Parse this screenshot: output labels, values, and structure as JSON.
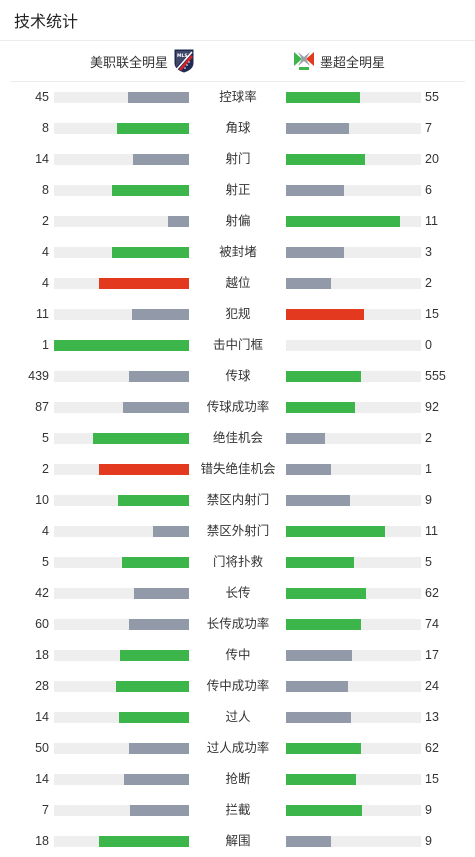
{
  "header": {
    "title": "技术统计"
  },
  "teams": {
    "home": {
      "name": "美职联全明星",
      "logo": "mls-crest-icon"
    },
    "away": {
      "name": "墨超全明星",
      "logo": "liga-mx-crest-icon"
    }
  },
  "colors": {
    "win": "#3cb54a",
    "lose": "#9299a8",
    "card": "#e2391f",
    "track": "#eeeeee"
  },
  "stats": [
    {
      "label": "控球率",
      "home": "45",
      "away": "55",
      "home_color": "gray",
      "away_color": "green",
      "home_fill": 0.45,
      "away_fill": 0.55
    },
    {
      "label": "角球",
      "home": "8",
      "away": "7",
      "home_color": "green",
      "away_color": "gray",
      "home_fill": 0.533,
      "away_fill": 0.467
    },
    {
      "label": "射门",
      "home": "14",
      "away": "20",
      "home_color": "gray",
      "away_color": "green",
      "home_fill": 0.412,
      "away_fill": 0.588
    },
    {
      "label": "射正",
      "home": "8",
      "away": "6",
      "home_color": "green",
      "away_color": "gray",
      "home_fill": 0.571,
      "away_fill": 0.429
    },
    {
      "label": "射偏",
      "home": "2",
      "away": "11",
      "home_color": "gray",
      "away_color": "green",
      "home_fill": 0.154,
      "away_fill": 0.846
    },
    {
      "label": "被封堵",
      "home": "4",
      "away": "3",
      "home_color": "green",
      "away_color": "gray",
      "home_fill": 0.571,
      "away_fill": 0.429
    },
    {
      "label": "越位",
      "home": "4",
      "away": "2",
      "home_color": "red",
      "away_color": "gray",
      "home_fill": 0.667,
      "away_fill": 0.333
    },
    {
      "label": "犯规",
      "home": "11",
      "away": "15",
      "home_color": "gray",
      "away_color": "red",
      "home_fill": 0.423,
      "away_fill": 0.577
    },
    {
      "label": "击中门框",
      "home": "1",
      "away": "0",
      "home_color": "green",
      "away_color": "gray",
      "home_fill": 1.0,
      "away_fill": 0.0
    },
    {
      "label": "传球",
      "home": "439",
      "away": "555",
      "home_color": "gray",
      "away_color": "green",
      "home_fill": 0.442,
      "away_fill": 0.558
    },
    {
      "label": "传球成功率",
      "home": "87",
      "away": "92",
      "home_color": "gray",
      "away_color": "green",
      "home_fill": 0.486,
      "away_fill": 0.514
    },
    {
      "label": "绝佳机会",
      "home": "5",
      "away": "2",
      "home_color": "green",
      "away_color": "gray",
      "home_fill": 0.714,
      "away_fill": 0.286
    },
    {
      "label": "错失绝佳机会",
      "home": "2",
      "away": "1",
      "home_color": "red",
      "away_color": "gray",
      "home_fill": 0.667,
      "away_fill": 0.333
    },
    {
      "label": "禁区内射门",
      "home": "10",
      "away": "9",
      "home_color": "green",
      "away_color": "gray",
      "home_fill": 0.526,
      "away_fill": 0.474
    },
    {
      "label": "禁区外射门",
      "home": "4",
      "away": "11",
      "home_color": "gray",
      "away_color": "green",
      "home_fill": 0.267,
      "away_fill": 0.733
    },
    {
      "label": "门将扑救",
      "home": "5",
      "away": "5",
      "home_color": "green",
      "away_color": "green",
      "home_fill": 0.5,
      "away_fill": 0.5
    },
    {
      "label": "长传",
      "home": "42",
      "away": "62",
      "home_color": "gray",
      "away_color": "green",
      "home_fill": 0.404,
      "away_fill": 0.596
    },
    {
      "label": "长传成功率",
      "home": "60",
      "away": "74",
      "home_color": "gray",
      "away_color": "green",
      "home_fill": 0.448,
      "away_fill": 0.552
    },
    {
      "label": "传中",
      "home": "18",
      "away": "17",
      "home_color": "green",
      "away_color": "gray",
      "home_fill": 0.514,
      "away_fill": 0.486
    },
    {
      "label": "传中成功率",
      "home": "28",
      "away": "24",
      "home_color": "green",
      "away_color": "gray",
      "home_fill": 0.538,
      "away_fill": 0.462
    },
    {
      "label": "过人",
      "home": "14",
      "away": "13",
      "home_color": "green",
      "away_color": "gray",
      "home_fill": 0.519,
      "away_fill": 0.481
    },
    {
      "label": "过人成功率",
      "home": "50",
      "away": "62",
      "home_color": "gray",
      "away_color": "green",
      "home_fill": 0.446,
      "away_fill": 0.554
    },
    {
      "label": "抢断",
      "home": "14",
      "away": "15",
      "home_color": "gray",
      "away_color": "green",
      "home_fill": 0.483,
      "away_fill": 0.517
    },
    {
      "label": "拦截",
      "home": "7",
      "away": "9",
      "home_color": "gray",
      "away_color": "green",
      "home_fill": 0.438,
      "away_fill": 0.562
    },
    {
      "label": "解围",
      "home": "18",
      "away": "9",
      "home_color": "green",
      "away_color": "gray",
      "home_fill": 0.667,
      "away_fill": 0.333
    }
  ]
}
